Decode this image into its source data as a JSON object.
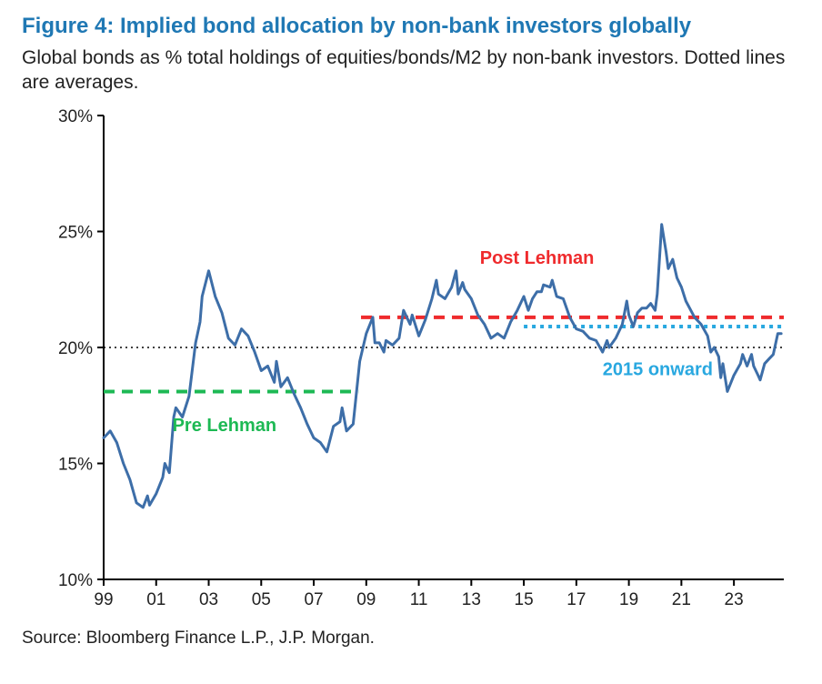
{
  "title": "Figure 4: Implied bond allocation by non-bank investors globally",
  "subtitle": "Global bonds as % total holdings of equities/bonds/M2 by non-bank investors. Dotted lines are averages.",
  "source": "Source: Bloomberg Finance L.P., J.P. Morgan.",
  "chart": {
    "type": "line",
    "background_color": "#ffffff",
    "axis_color": "#000000",
    "tick_label_color": "#222222",
    "tick_label_fontsize": 19,
    "xlim": [
      1999,
      2024.9
    ],
    "ylim": [
      10,
      30
    ],
    "ytick_values": [
      10,
      15,
      20,
      25,
      30
    ],
    "ytick_labels": [
      "10%",
      "15%",
      "20%",
      "25%",
      "30%"
    ],
    "xtick_values": [
      1999,
      2001,
      2003,
      2005,
      2007,
      2009,
      2011,
      2013,
      2015,
      2017,
      2019,
      2021,
      2023
    ],
    "xtick_labels": [
      "99",
      "01",
      "03",
      "05",
      "07",
      "09",
      "11",
      "13",
      "15",
      "17",
      "19",
      "21",
      "23"
    ],
    "reference_line": {
      "y": 20,
      "color": "#000000",
      "dash": "2,4",
      "width": 1.5
    },
    "series": {
      "name": "Global bond allocation",
      "color": "#3d6ea8",
      "line_width": 3,
      "data": [
        [
          1999.0,
          16.1
        ],
        [
          1999.25,
          16.4
        ],
        [
          1999.5,
          15.9
        ],
        [
          1999.75,
          15.0
        ],
        [
          2000.0,
          14.3
        ],
        [
          2000.25,
          13.3
        ],
        [
          2000.5,
          13.1
        ],
        [
          2000.67,
          13.6
        ],
        [
          2000.75,
          13.2
        ],
        [
          2001.0,
          13.7
        ],
        [
          2001.25,
          14.4
        ],
        [
          2001.33,
          15.0
        ],
        [
          2001.5,
          14.6
        ],
        [
          2001.67,
          17.0
        ],
        [
          2001.75,
          17.4
        ],
        [
          2002.0,
          17.0
        ],
        [
          2002.25,
          17.9
        ],
        [
          2002.5,
          20.2
        ],
        [
          2002.67,
          21.1
        ],
        [
          2002.75,
          22.2
        ],
        [
          2003.0,
          23.3
        ],
        [
          2003.25,
          22.2
        ],
        [
          2003.5,
          21.5
        ],
        [
          2003.75,
          20.4
        ],
        [
          2004.0,
          20.1
        ],
        [
          2004.25,
          20.8
        ],
        [
          2004.5,
          20.5
        ],
        [
          2004.75,
          19.8
        ],
        [
          2005.0,
          19.0
        ],
        [
          2005.25,
          19.2
        ],
        [
          2005.5,
          18.5
        ],
        [
          2005.58,
          19.4
        ],
        [
          2005.75,
          18.3
        ],
        [
          2006.0,
          18.7
        ],
        [
          2006.25,
          18.0
        ],
        [
          2006.5,
          17.4
        ],
        [
          2006.75,
          16.7
        ],
        [
          2007.0,
          16.1
        ],
        [
          2007.25,
          15.9
        ],
        [
          2007.5,
          15.5
        ],
        [
          2007.75,
          16.6
        ],
        [
          2008.0,
          16.8
        ],
        [
          2008.08,
          17.4
        ],
        [
          2008.25,
          16.4
        ],
        [
          2008.5,
          16.7
        ],
        [
          2008.75,
          19.4
        ],
        [
          2009.0,
          20.6
        ],
        [
          2009.25,
          21.3
        ],
        [
          2009.33,
          20.2
        ],
        [
          2009.5,
          20.2
        ],
        [
          2009.67,
          19.8
        ],
        [
          2009.75,
          20.3
        ],
        [
          2010.0,
          20.1
        ],
        [
          2010.25,
          20.4
        ],
        [
          2010.42,
          21.6
        ],
        [
          2010.67,
          21.0
        ],
        [
          2010.75,
          21.4
        ],
        [
          2011.0,
          20.5
        ],
        [
          2011.25,
          21.2
        ],
        [
          2011.5,
          22.1
        ],
        [
          2011.67,
          22.9
        ],
        [
          2011.75,
          22.3
        ],
        [
          2012.0,
          22.1
        ],
        [
          2012.25,
          22.6
        ],
        [
          2012.42,
          23.3
        ],
        [
          2012.5,
          22.3
        ],
        [
          2012.67,
          22.8
        ],
        [
          2012.75,
          22.5
        ],
        [
          2013.0,
          22.1
        ],
        [
          2013.25,
          21.4
        ],
        [
          2013.5,
          21.0
        ],
        [
          2013.75,
          20.4
        ],
        [
          2014.0,
          20.6
        ],
        [
          2014.25,
          20.4
        ],
        [
          2014.5,
          21.1
        ],
        [
          2014.75,
          21.6
        ],
        [
          2015.0,
          22.2
        ],
        [
          2015.17,
          21.6
        ],
        [
          2015.33,
          22.1
        ],
        [
          2015.5,
          22.4
        ],
        [
          2015.67,
          22.4
        ],
        [
          2015.75,
          22.7
        ],
        [
          2016.0,
          22.6
        ],
        [
          2016.08,
          22.9
        ],
        [
          2016.25,
          22.2
        ],
        [
          2016.5,
          22.1
        ],
        [
          2016.75,
          21.3
        ],
        [
          2017.0,
          20.8
        ],
        [
          2017.25,
          20.7
        ],
        [
          2017.5,
          20.4
        ],
        [
          2017.75,
          20.3
        ],
        [
          2018.0,
          19.8
        ],
        [
          2018.17,
          20.3
        ],
        [
          2018.25,
          20.0
        ],
        [
          2018.5,
          20.4
        ],
        [
          2018.75,
          21.0
        ],
        [
          2018.92,
          22.0
        ],
        [
          2019.0,
          21.4
        ],
        [
          2019.17,
          20.9
        ],
        [
          2019.33,
          21.5
        ],
        [
          2019.5,
          21.7
        ],
        [
          2019.67,
          21.7
        ],
        [
          2019.83,
          21.9
        ],
        [
          2020.0,
          21.6
        ],
        [
          2020.08,
          22.3
        ],
        [
          2020.25,
          25.3
        ],
        [
          2020.42,
          24.1
        ],
        [
          2020.5,
          23.4
        ],
        [
          2020.67,
          23.8
        ],
        [
          2020.83,
          23.0
        ],
        [
          2021.0,
          22.6
        ],
        [
          2021.17,
          22.0
        ],
        [
          2021.5,
          21.3
        ],
        [
          2021.75,
          21.0
        ],
        [
          2022.0,
          20.5
        ],
        [
          2022.12,
          19.8
        ],
        [
          2022.25,
          20.0
        ],
        [
          2022.42,
          19.6
        ],
        [
          2022.5,
          18.7
        ],
        [
          2022.58,
          19.3
        ],
        [
          2022.75,
          18.1
        ],
        [
          2023.0,
          18.8
        ],
        [
          2023.25,
          19.3
        ],
        [
          2023.33,
          19.7
        ],
        [
          2023.5,
          19.2
        ],
        [
          2023.67,
          19.7
        ],
        [
          2023.75,
          19.2
        ],
        [
          2023.92,
          18.8
        ],
        [
          2024.0,
          18.6
        ],
        [
          2024.17,
          19.3
        ],
        [
          2024.33,
          19.5
        ],
        [
          2024.5,
          19.7
        ],
        [
          2024.67,
          20.6
        ],
        [
          2024.8,
          20.6
        ]
      ]
    },
    "average_lines": [
      {
        "id": "pre_lehman",
        "label": "Pre Lehman",
        "color": "#1db954",
        "text_color": "#1db954",
        "x_from": 1999.0,
        "x_to": 2008.7,
        "y": 18.1,
        "dash": "12,8",
        "width": 4,
        "label_x": 2003.6,
        "label_y": 16.4
      },
      {
        "id": "post_lehman",
        "label": "Post Lehman",
        "color": "#ef2b2d",
        "text_color": "#ef2b2d",
        "x_from": 2008.8,
        "x_to": 2024.9,
        "y": 21.3,
        "dash": "12,8",
        "width": 4,
        "label_x": 2015.5,
        "label_y": 23.6
      },
      {
        "id": "2015_onward",
        "label": "2015 onward",
        "color": "#29a8e0",
        "text_color": "#29a8e0",
        "x_from": 2015.0,
        "x_to": 2024.9,
        "y": 20.9,
        "dash": "4,5",
        "width": 4,
        "label_x": 2020.1,
        "label_y": 18.8
      }
    ]
  }
}
